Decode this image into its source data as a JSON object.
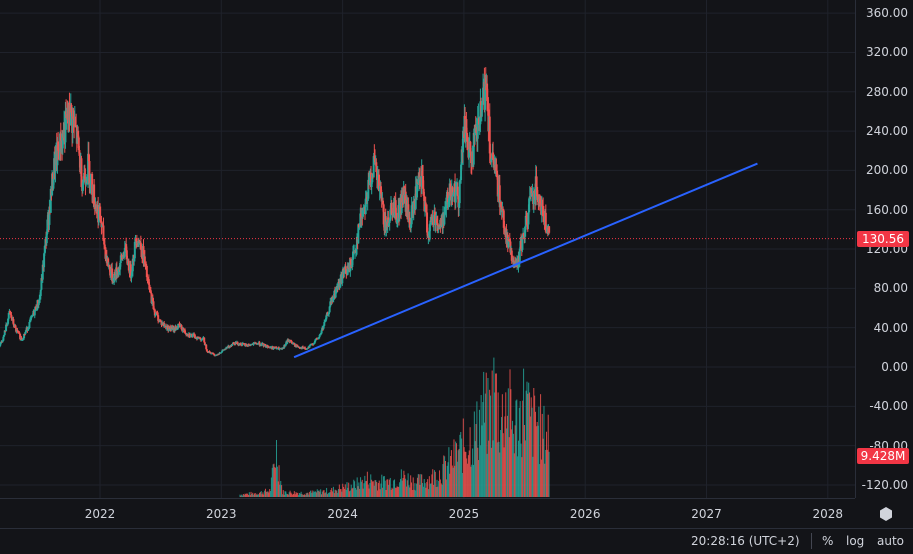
{
  "chart_data": {
    "type": "candlestick",
    "price_axis": {
      "min": -130,
      "max": 365,
      "ticks": [
        "360.00",
        "320.00",
        "280.00",
        "240.00",
        "200.00",
        "160.00",
        "120.00",
        "80.00",
        "40.00",
        "0.00",
        "-40.00",
        "-80.00",
        "-120.00"
      ]
    },
    "time_axis": {
      "ticks": [
        "2022",
        "2023",
        "2024",
        "2025",
        "2026",
        "2027",
        "2028"
      ]
    },
    "last_price": "130.56",
    "last_volume": "9.428M",
    "trendline": {
      "start": {
        "t": 2023.6,
        "price": 10
      },
      "end": {
        "t": 2027.42,
        "price": 207
      },
      "color": "#2962ff"
    },
    "price_path": [
      [
        2021.15,
        18
      ],
      [
        2021.2,
        30
      ],
      [
        2021.25,
        55
      ],
      [
        2021.3,
        38
      ],
      [
        2021.35,
        28
      ],
      [
        2021.4,
        40
      ],
      [
        2021.5,
        70
      ],
      [
        2021.55,
        130
      ],
      [
        2021.62,
        205
      ],
      [
        2021.7,
        240
      ],
      [
        2021.75,
        258
      ],
      [
        2021.8,
        238
      ],
      [
        2021.85,
        190
      ],
      [
        2021.9,
        205
      ],
      [
        2021.95,
        170
      ],
      [
        2022.0,
        150
      ],
      [
        2022.05,
        110
      ],
      [
        2022.1,
        90
      ],
      [
        2022.15,
        100
      ],
      [
        2022.2,
        120
      ],
      [
        2022.25,
        95
      ],
      [
        2022.3,
        135
      ],
      [
        2022.35,
        115
      ],
      [
        2022.4,
        80
      ],
      [
        2022.45,
        55
      ],
      [
        2022.5,
        45
      ],
      [
        2022.55,
        40
      ],
      [
        2022.6,
        38
      ],
      [
        2022.65,
        42
      ],
      [
        2022.7,
        35
      ],
      [
        2022.75,
        32
      ],
      [
        2022.8,
        30
      ],
      [
        2022.85,
        28
      ],
      [
        2022.88,
        16
      ],
      [
        2022.95,
        12
      ],
      [
        2023.0,
        16
      ],
      [
        2023.05,
        20
      ],
      [
        2023.1,
        25
      ],
      [
        2023.2,
        22
      ],
      [
        2023.3,
        24
      ],
      [
        2023.4,
        20
      ],
      [
        2023.5,
        18
      ],
      [
        2023.55,
        28
      ],
      [
        2023.6,
        22
      ],
      [
        2023.7,
        18
      ],
      [
        2023.8,
        30
      ],
      [
        2023.85,
        45
      ],
      [
        2023.9,
        65
      ],
      [
        2023.95,
        80
      ],
      [
        2024.0,
        95
      ],
      [
        2024.05,
        100
      ],
      [
        2024.1,
        120
      ],
      [
        2024.15,
        155
      ],
      [
        2024.2,
        175
      ],
      [
        2024.25,
        208
      ],
      [
        2024.3,
        180
      ],
      [
        2024.35,
        140
      ],
      [
        2024.4,
        165
      ],
      [
        2024.45,
        155
      ],
      [
        2024.5,
        175
      ],
      [
        2024.55,
        145
      ],
      [
        2024.6,
        175
      ],
      [
        2024.65,
        190
      ],
      [
        2024.7,
        135
      ],
      [
        2024.75,
        155
      ],
      [
        2024.8,
        140
      ],
      [
        2024.85,
        165
      ],
      [
        2024.9,
        185
      ],
      [
        2024.95,
        170
      ],
      [
        2025.0,
        245
      ],
      [
        2025.05,
        210
      ],
      [
        2025.1,
        235
      ],
      [
        2025.15,
        265
      ],
      [
        2025.18,
        295
      ],
      [
        2025.22,
        210
      ],
      [
        2025.27,
        190
      ],
      [
        2025.3,
        165
      ],
      [
        2025.35,
        130
      ],
      [
        2025.4,
        110
      ],
      [
        2025.43,
        100
      ],
      [
        2025.47,
        125
      ],
      [
        2025.5,
        140
      ],
      [
        2025.55,
        175
      ],
      [
        2025.6,
        185
      ],
      [
        2025.65,
        155
      ],
      [
        2025.7,
        131
      ]
    ],
    "volume_path": [
      [
        2023.15,
        3
      ],
      [
        2023.3,
        5
      ],
      [
        2023.4,
        8
      ],
      [
        2023.45,
        60
      ],
      [
        2023.5,
        6
      ],
      [
        2023.7,
        5
      ],
      [
        2023.9,
        8
      ],
      [
        2024.0,
        12
      ],
      [
        2024.1,
        15
      ],
      [
        2024.2,
        22
      ],
      [
        2024.3,
        18
      ],
      [
        2024.4,
        20
      ],
      [
        2024.5,
        25
      ],
      [
        2024.6,
        18
      ],
      [
        2024.7,
        22
      ],
      [
        2024.8,
        30
      ],
      [
        2024.9,
        45
      ],
      [
        2025.0,
        65
      ],
      [
        2025.1,
        80
      ],
      [
        2025.15,
        110
      ],
      [
        2025.2,
        95
      ],
      [
        2025.25,
        135
      ],
      [
        2025.3,
        90
      ],
      [
        2025.35,
        125
      ],
      [
        2025.4,
        85
      ],
      [
        2025.45,
        95
      ],
      [
        2025.5,
        120
      ],
      [
        2025.55,
        90
      ],
      [
        2025.6,
        95
      ],
      [
        2025.65,
        75
      ],
      [
        2025.7,
        80
      ]
    ],
    "colors": {
      "up": "#26a69a",
      "down": "#ef5350",
      "grid": "#1f222b",
      "background": "#131418"
    }
  },
  "status_bar": {
    "time": "20:28:16 (UTC+2)",
    "percent_label": "%",
    "log_label": "log",
    "auto_label": "auto"
  }
}
